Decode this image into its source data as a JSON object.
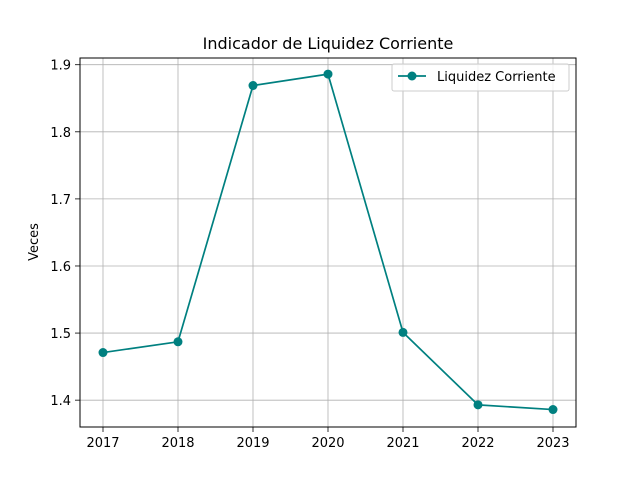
{
  "chart_data": {
    "type": "line",
    "title": "Indicador de Liquidez Corriente",
    "xlabel": "",
    "ylabel": "Veces",
    "categories": [
      "2017",
      "2018",
      "2019",
      "2020",
      "2021",
      "2022",
      "2023"
    ],
    "series": [
      {
        "name": "Liquidez Corriente",
        "values": [
          1.471,
          1.487,
          1.869,
          1.886,
          1.501,
          1.393,
          1.386
        ],
        "color": "#008080",
        "marker": "circle"
      }
    ],
    "ylim": [
      1.36,
      1.91
    ],
    "yticks": [
      "1.4",
      "1.5",
      "1.6",
      "1.7",
      "1.8",
      "1.9"
    ],
    "grid": true,
    "legend_position": "top-right"
  }
}
